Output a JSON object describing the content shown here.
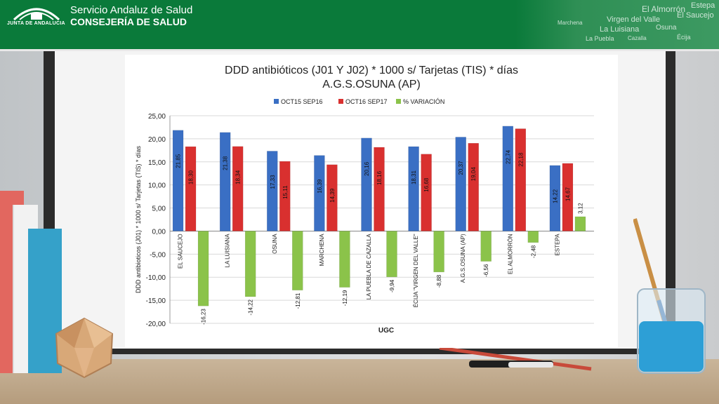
{
  "header": {
    "logo_text": "JUNTA DE ANDALUCIA",
    "org_line1": "Servicio Andaluz de Salud",
    "org_line2": "CONSEJERÍA DE SALUD",
    "cloud_words": [
      "Estepa",
      "El Almorrón",
      "El Saucejo",
      "Virgen del Valle",
      "La Luisiana",
      "Osuna",
      "Marchena",
      "La Puebla",
      "Cazalla",
      "Écija"
    ]
  },
  "colors": {
    "banner": "#0a7a3a",
    "series1": "#3a6fc4",
    "series2": "#d9302f",
    "series3": "#8bc34a"
  },
  "chart_data": {
    "type": "bar",
    "title_line1": "DDD antibióticos (J01 Y J02) * 1000 s/ Tarjetas (TIS) * días",
    "title_line2": "A.G.S.OSUNA (AP)",
    "xlabel": "UGC",
    "ylabel": "DDD antibioticos (J01) * 1000 s/ Tarjetas (TIS) * días",
    "ylim": [
      -20,
      25
    ],
    "yticks": [
      "25,00",
      "20,00",
      "15,00",
      "10,00",
      "5,00",
      "0,00",
      "-5,00",
      "-10,00",
      "-15,00",
      "-20,00"
    ],
    "legend_position": "top",
    "categories": [
      "EL SAUCEJO",
      "LA LUISIANA",
      "OSUNA",
      "MARCHENA",
      "LA PUEBLA DE CAZALLA",
      "ÉCIJA \"VIRGEN DEL VALLE\"",
      "A.G.S.OSUNA (AP)",
      "EL ALMORRÓN",
      "ESTEPA"
    ],
    "series": [
      {
        "name": "OCT15 SEP16",
        "values": [
          21.85,
          21.38,
          17.33,
          16.39,
          20.16,
          18.31,
          20.37,
          22.74,
          14.22
        ],
        "labels": [
          "21,85",
          "21,38",
          "17,33",
          "16,39",
          "20,16",
          "18,31",
          "20,37",
          "22,74",
          "14,22"
        ]
      },
      {
        "name": "OCT16 SEP17",
        "values": [
          18.3,
          18.34,
          15.11,
          14.39,
          18.16,
          16.68,
          19.04,
          22.18,
          14.67
        ],
        "labels": [
          "18,30",
          "18,34",
          "15,11",
          "14,39",
          "18,16",
          "16,68",
          "19,04",
          "22,18",
          "14,67"
        ]
      },
      {
        "name": "% VARIACIÓN",
        "values": [
          -16.23,
          -14.22,
          -12.81,
          -12.19,
          -9.94,
          -8.88,
          -6.56,
          -2.48,
          3.12
        ],
        "labels": [
          "-16,23",
          "-14,22",
          "-12,81",
          "-12,19",
          "-9,94",
          "-8,88",
          "-6,56",
          "-2,48",
          "3,12"
        ]
      }
    ]
  }
}
